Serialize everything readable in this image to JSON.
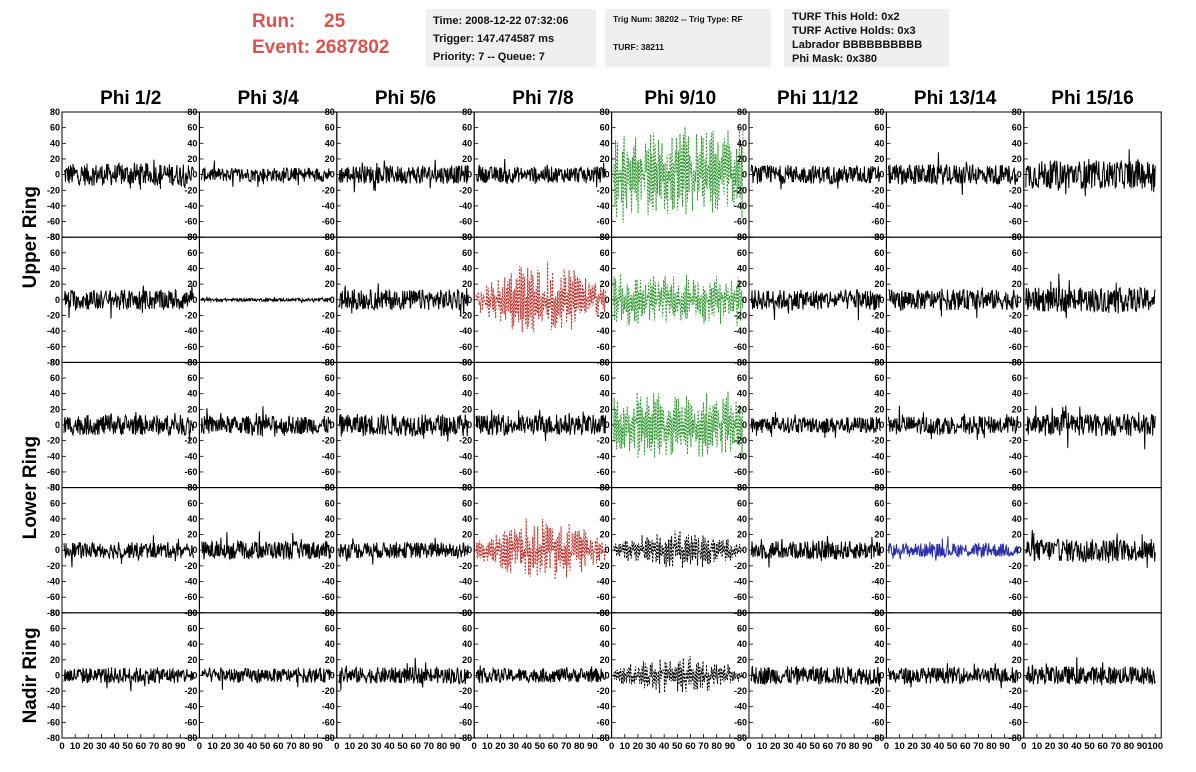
{
  "run": {
    "run_label": "Run:",
    "run_value": "25",
    "event_label": "Event:",
    "event_value": "2687802"
  },
  "info_time": {
    "time": "Time: 2008-12-22 07:32:06",
    "trigger": "Trigger: 147.474587 ms",
    "priority": "Priority: 7 -- Queue: 7"
  },
  "info_trig": {
    "trig": "Trig Num: 38202 -- Trig Type: RF",
    "turf": "TURF: 38211"
  },
  "info_turf": {
    "this_hold": "TURF This Hold: 0x2",
    "active_holds": "TURF Active Holds: 0x3",
    "labrador": "Labrador BBBBBBBBBB",
    "phi_mask": "Phi Mask: 0x380"
  },
  "column_headers": [
    "Phi 1/2",
    "Phi 3/4",
    "Phi 5/6",
    "Phi 7/8",
    "Phi 9/10",
    "Phi 11/12",
    "Phi 13/14",
    "Phi 15/16"
  ],
  "row_labels": [
    "Upper Ring",
    "Lower Ring",
    "Nadir Ring"
  ],
  "y_ticks": [
    "80",
    "60",
    "40",
    "20",
    "0",
    "-20",
    "-40",
    "-60",
    "-80"
  ],
  "x_ticks": [
    "0",
    "10",
    "20",
    "30",
    "40",
    "50",
    "60",
    "70",
    "80",
    "90",
    "100"
  ],
  "colors": {
    "normal": "#000000",
    "triggered_red": "#c0302a",
    "triggered_green": "#2f9a2f",
    "triggered_blue": "#2a2ea8",
    "info_box_bg": "#efefef",
    "run_text": "#d9534f"
  },
  "chart_data": {
    "type": "line",
    "x_range": [
      0,
      100
    ],
    "y_range": [
      -80,
      80
    ],
    "rows": 5,
    "cols": 8,
    "trace_styles": [
      [
        "normal",
        "normal",
        "normal",
        "normal",
        "green_dotted",
        "normal",
        "normal",
        "normal"
      ],
      [
        "normal",
        "normal",
        "normal",
        "red_dotted",
        "green_dotted",
        "normal",
        "normal",
        "normal"
      ],
      [
        "normal",
        "normal",
        "normal",
        "normal",
        "green_dotted",
        "normal",
        "normal",
        "normal"
      ],
      [
        "normal",
        "normal",
        "normal",
        "red_dotted",
        "black_dotted",
        "normal",
        "blue",
        "normal"
      ],
      [
        "normal",
        "normal",
        "normal",
        "normal",
        "black_dotted",
        "normal",
        "normal",
        "normal"
      ]
    ],
    "trace_amplitudes": [
      [
        22,
        14,
        18,
        16,
        52,
        18,
        20,
        28
      ],
      [
        20,
        3,
        20,
        42,
        30,
        20,
        20,
        24
      ],
      [
        20,
        18,
        22,
        20,
        36,
        16,
        18,
        22
      ],
      [
        16,
        18,
        16,
        36,
        22,
        18,
        14,
        22
      ],
      [
        16,
        14,
        16,
        14,
        22,
        18,
        16,
        18
      ]
    ]
  }
}
